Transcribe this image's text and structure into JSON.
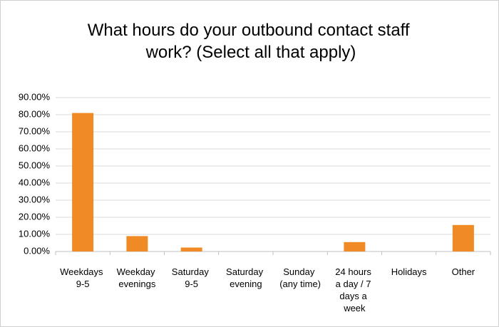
{
  "chart_data": {
    "type": "bar",
    "title": "What hours do your outbound contact staff work? (Select all that apply)",
    "categories": [
      "Weekdays 9-5",
      "Weekday evenings",
      "Saturday 9-5",
      "Saturday evening",
      "Sunday (any time)",
      "24 hours a day / 7 days a week",
      "Holidays",
      "Other"
    ],
    "values": [
      81,
      9,
      2.3,
      0,
      0,
      5.5,
      0,
      15.5
    ],
    "color": "#f08a24",
    "ylim": [
      0,
      90
    ],
    "yticks": [
      {
        "value": 0,
        "label": "0.00%"
      },
      {
        "value": 10,
        "label": "10.00%"
      },
      {
        "value": 20,
        "label": "20.00%"
      },
      {
        "value": 30,
        "label": "30.00%"
      },
      {
        "value": 40,
        "label": "40.00%"
      },
      {
        "value": 50,
        "label": "50.00%"
      },
      {
        "value": 60,
        "label": "60.00%"
      },
      {
        "value": 70,
        "label": "70.00%"
      },
      {
        "value": 80,
        "label": "80.00%"
      },
      {
        "value": 90,
        "label": "90.00%"
      }
    ],
    "grid": true
  }
}
